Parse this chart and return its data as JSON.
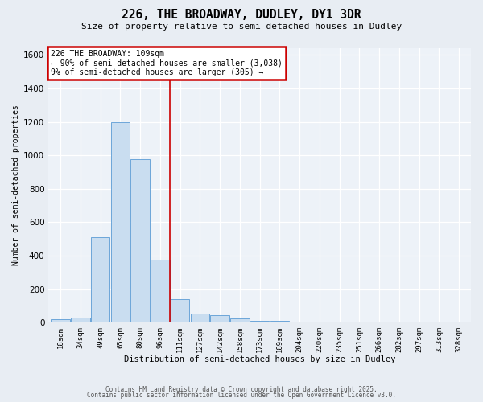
{
  "title1": "226, THE BROADWAY, DUDLEY, DY1 3DR",
  "title2": "Size of property relative to semi-detached houses in Dudley",
  "xlabel": "Distribution of semi-detached houses by size in Dudley",
  "ylabel": "Number of semi-detached properties",
  "bins": [
    "18sqm",
    "34sqm",
    "49sqm",
    "65sqm",
    "80sqm",
    "96sqm",
    "111sqm",
    "127sqm",
    "142sqm",
    "158sqm",
    "173sqm",
    "189sqm",
    "204sqm",
    "220sqm",
    "235sqm",
    "251sqm",
    "266sqm",
    "282sqm",
    "297sqm",
    "313sqm",
    "328sqm"
  ],
  "bar_heights": [
    20,
    30,
    510,
    1200,
    975,
    375,
    140,
    55,
    45,
    25,
    10,
    10,
    0,
    0,
    0,
    0,
    0,
    0,
    0,
    0,
    0
  ],
  "bar_color": "#c9ddf0",
  "bar_edge_color": "#5b9bd5",
  "red_line_x": 5.5,
  "annotation_title": "226 THE BROADWAY: 109sqm",
  "annotation_line1": "← 90% of semi-detached houses are smaller (3,038)",
  "annotation_line2": "9% of semi-detached houses are larger (305) →",
  "annotation_box_color": "#ffffff",
  "annotation_box_edge": "#cc0000",
  "red_line_color": "#cc0000",
  "ylim": [
    0,
    1640
  ],
  "yticks": [
    0,
    200,
    400,
    600,
    800,
    1000,
    1200,
    1400,
    1600
  ],
  "bg_color": "#e8edf3",
  "plot_bg_color": "#edf2f8",
  "grid_color": "#ffffff",
  "footer1": "Contains HM Land Registry data © Crown copyright and database right 2025.",
  "footer2": "Contains public sector information licensed under the Open Government Licence v3.0."
}
